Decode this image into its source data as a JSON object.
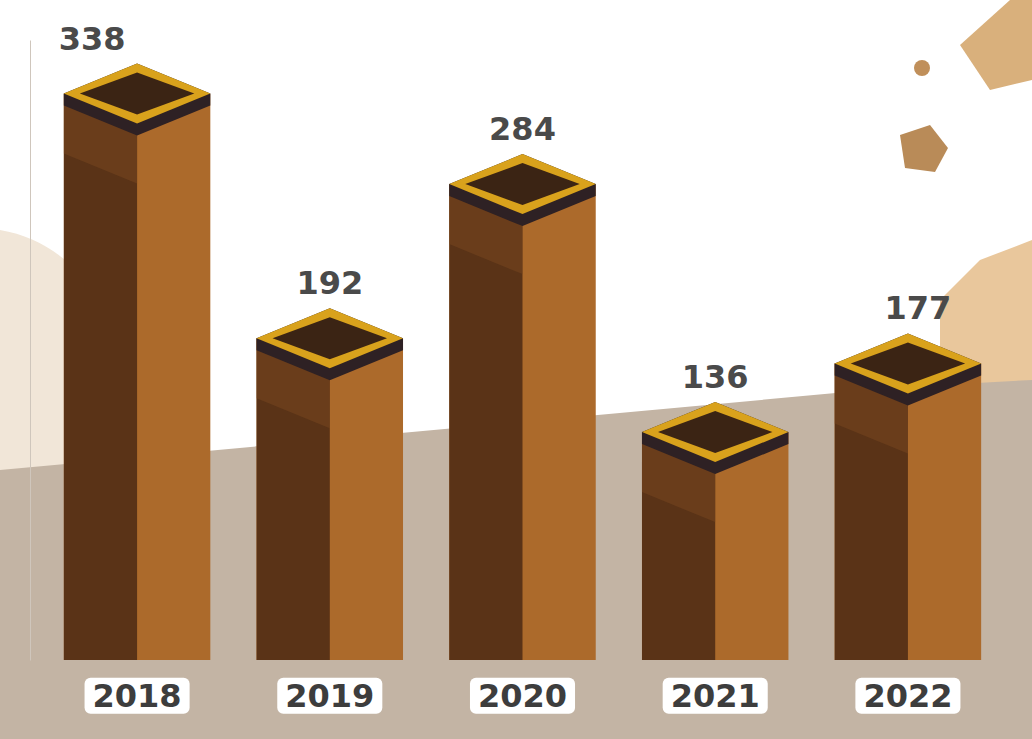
{
  "chart_data": {
    "type": "bar",
    "categories": [
      "2018",
      "2019",
      "2020",
      "2021",
      "2022"
    ],
    "values": [
      338,
      192,
      284,
      136,
      177
    ],
    "ylim": [
      0,
      370
    ],
    "data_labels": true,
    "tick_labels": "x",
    "grid": false
  }
}
